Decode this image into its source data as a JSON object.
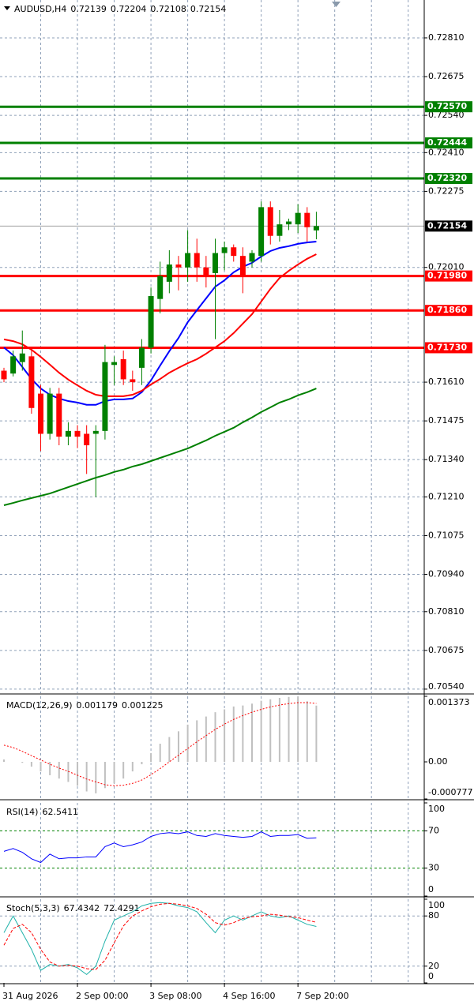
{
  "chart_data": [
    {
      "type": "candlestick",
      "title": "AUDUSD,H4",
      "categories": [
        "31 Aug 2026",
        null,
        null,
        null,
        null,
        null,
        null,
        null,
        "2 Sep 00:00",
        null,
        null,
        null,
        null,
        null,
        null,
        null,
        "3 Sep 08:00",
        null,
        null,
        null,
        null,
        null,
        null,
        null,
        "4 Sep 16:00",
        null,
        null,
        null,
        null,
        null,
        null,
        null,
        "7 Sep 20:00",
        null,
        null
      ],
      "series": [
        {
          "up_color": "#008000",
          "down_color": "#ff0000",
          "open": [
            0.7165,
            0.7164,
            0.7168,
            0.717,
            0.7157,
            0.7143,
            0.7157,
            0.7142,
            0.7144,
            0.7143,
            0.7143,
            0.7144,
            0.7167,
            0.7169,
            0.7162,
            0.7166,
            0.7173,
            0.719,
            0.7196,
            0.7202,
            0.7201,
            0.7206,
            0.7201,
            0.7199,
            0.7206,
            0.7208,
            0.7205,
            0.7203,
            0.7205,
            0.7222,
            0.7212,
            0.7216,
            0.7216,
            0.722,
            0.72139
          ],
          "high": [
            0.7166,
            0.7172,
            0.7179,
            0.7172,
            0.716,
            0.7159,
            0.7159,
            0.7147,
            0.7146,
            0.7146,
            0.7146,
            0.7174,
            0.717,
            0.7172,
            0.7165,
            0.7176,
            0.7194,
            0.7203,
            0.7207,
            0.7205,
            0.7214,
            0.7211,
            0.7205,
            0.7211,
            0.721,
            0.7209,
            0.7208,
            0.7207,
            0.7224,
            0.7224,
            0.7221,
            0.7218,
            0.7223,
            0.7222,
            0.72204
          ],
          "low": [
            0.7161,
            0.7163,
            0.7165,
            0.715,
            0.7137,
            0.7141,
            0.7139,
            0.7139,
            0.7138,
            0.7129,
            0.7121,
            0.7141,
            0.716,
            0.716,
            0.7158,
            0.716,
            0.7171,
            0.7185,
            0.7192,
            0.7193,
            0.7196,
            0.7196,
            0.7194,
            0.7176,
            0.72,
            0.7203,
            0.7192,
            0.7201,
            0.7203,
            0.7209,
            0.721,
            0.7214,
            0.7213,
            0.721,
            0.72108
          ],
          "close": [
            0.7162,
            0.717,
            0.7171,
            0.7152,
            0.7143,
            0.7157,
            0.7142,
            0.7144,
            0.7142,
            0.7139,
            0.7144,
            0.7168,
            0.7168,
            0.7162,
            0.7161,
            0.7173,
            0.7191,
            0.7198,
            0.7202,
            0.7201,
            0.7206,
            0.7201,
            0.7198,
            0.7206,
            0.7208,
            0.7205,
            0.7198,
            0.7206,
            0.7222,
            0.7212,
            0.7216,
            0.7217,
            0.722,
            0.7215,
            0.72154
          ]
        }
      ],
      "lines": [
        {
          "color": "#0000ff",
          "values": [
            0.71731,
            0.71704,
            0.71663,
            0.71621,
            0.71588,
            0.71566,
            0.71553,
            0.71544,
            0.71539,
            0.71531,
            0.71531,
            0.71544,
            0.7155,
            0.7155,
            0.71553,
            0.71575,
            0.71616,
            0.71668,
            0.71718,
            0.71764,
            0.71819,
            0.71861,
            0.71902,
            0.71943,
            0.71965,
            0.71993,
            0.72012,
            0.72026,
            0.72048,
            0.72067,
            0.72078,
            0.72084,
            0.72092,
            0.72097,
            0.721
          ]
        },
        {
          "color": "#ff0000",
          "values": [
            0.71759,
            0.71753,
            0.71742,
            0.71723,
            0.71698,
            0.71671,
            0.71643,
            0.71619,
            0.71599,
            0.7158,
            0.71566,
            0.71561,
            0.71561,
            0.71561,
            0.71566,
            0.7158,
            0.71602,
            0.71621,
            0.71643,
            0.7166,
            0.71676,
            0.7169,
            0.71709,
            0.71731,
            0.71753,
            0.71781,
            0.71814,
            0.71847,
            0.71891,
            0.71935,
            0.71973,
            0.71998,
            0.7202,
            0.7204,
            0.72056
          ]
        },
        {
          "color": "#008000",
          "values": [
            0.71181,
            0.71189,
            0.71198,
            0.71206,
            0.71214,
            0.71222,
            0.71233,
            0.71244,
            0.71255,
            0.71266,
            0.71277,
            0.71286,
            0.71297,
            0.71305,
            0.71316,
            0.71324,
            0.71335,
            0.71346,
            0.71357,
            0.71368,
            0.71379,
            0.71393,
            0.71407,
            0.71423,
            0.71437,
            0.71451,
            0.7147,
            0.71487,
            0.71506,
            0.71522,
            0.71539,
            0.7155,
            0.71564,
            0.71575,
            0.71588
          ]
        }
      ],
      "levels": [
        {
          "value": 0.7257,
          "label": "0.72570",
          "color": "#008000"
        },
        {
          "value": 0.72444,
          "color": "#008000"
        },
        {
          "value": 0.7232,
          "label": "0.72320",
          "color": "#008000"
        },
        {
          "value": 0.7198,
          "label": "0.71980",
          "color": "#ff0000"
        },
        {
          "value": 0.7186,
          "label": "0.71860",
          "color": "#ff0000"
        },
        {
          "value": 0.7173,
          "label": "0.71730",
          "color": "#ff0000"
        }
      ],
      "ylim": [
        0.70526,
        0.72942
      ],
      "yticks": [
        {
          "value": 0.7281,
          "label": "0.72810"
        },
        0.72675,
        {
          "value": 0.7254,
          "label": "0.72540"
        },
        {
          "value": 0.7241,
          "label": "0.72410"
        },
        0.72275,
        {
          "value": 0.7201,
          "label": "0.72010"
        },
        {
          "value": 0.7161,
          "label": "0.71610"
        },
        0.71475,
        {
          "value": 0.7134,
          "label": "0.71340"
        },
        {
          "value": 0.7121,
          "label": "0.71210"
        },
        0.71075,
        {
          "value": 0.7094,
          "label": "0.70940"
        },
        {
          "value": 0.7081,
          "label": "0.70810"
        },
        0.70675,
        {
          "value": 0.7054,
          "label": "0.70540"
        }
      ],
      "grid": true
    },
    {
      "type": "macd",
      "title": "MACD(12,26,9)",
      "series": [
        {
          "type": "bar",
          "color": "#c0c0c0",
          "values": [
            5e-05,
            0.0,
            -2e-05,
            -0.0001,
            -0.0002,
            -0.00028,
            -0.00035,
            -0.00042,
            -0.0005,
            -0.00062,
            -0.00066,
            -0.00055,
            -0.00045,
            -0.00035,
            -0.0002,
            -5e-05,
            0.00018,
            0.00038,
            0.00052,
            0.00064,
            0.00078,
            0.00087,
            0.00095,
            0.00104,
            0.0011,
            0.00116,
            0.00118,
            0.00122,
            0.00128,
            0.00131,
            0.00134,
            0.00136,
            0.00137,
            0.00127,
            0.001179
          ]
        },
        {
          "type": "line",
          "color": "#ff0000",
          "style": "dotted",
          "values": [
            0.00035,
            0.0003,
            0.00022,
            0.00013,
            4e-05,
            -5e-05,
            -0.00013,
            -0.0002,
            -0.00028,
            -0.00036,
            -0.00042,
            -0.00048,
            -0.0005,
            -0.00049,
            -0.00045,
            -0.00038,
            -0.00027,
            -0.00014,
            0.0,
            0.00014,
            0.00028,
            0.00042,
            0.00055,
            0.00068,
            0.00079,
            0.00089,
            0.00097,
            0.00104,
            0.0011,
            0.00115,
            0.00119,
            0.00122,
            0.00124,
            0.00124,
            0.001225
          ]
        }
      ],
      "ylim": [
        -0.000777,
        0.001373
      ],
      "yticks": [
        0.001373,
        {
          "value": 0,
          "label": "0.00"
        },
        -0.000777
      ]
    },
    {
      "type": "oscillator",
      "title": "RSI(14)",
      "series": [
        {
          "color": "#0000ff",
          "style": "solid",
          "values": [
            48,
            51,
            47,
            40,
            36,
            45,
            40,
            41,
            41,
            42,
            42,
            53,
            57,
            53,
            55,
            58,
            64,
            67,
            68,
            67,
            69,
            65,
            64,
            67,
            65,
            64,
            63,
            64,
            69,
            64,
            65,
            65,
            66,
            62,
            62.5411
          ]
        }
      ],
      "levels": [
        70,
        30
      ],
      "level_color": "#008000",
      "ylim": [
        0,
        100
      ],
      "yticks": [
        100,
        70,
        30,
        0
      ]
    },
    {
      "type": "oscillator",
      "title": "Stoch(5,3,3)",
      "series": [
        {
          "color": "#20b2aa",
          "style": "solid",
          "values": [
            60,
            80,
            60,
            40,
            15,
            22,
            20,
            22,
            18,
            10,
            20,
            50,
            75,
            80,
            85,
            92,
            95,
            96,
            95,
            92,
            90,
            85,
            72,
            60,
            75,
            80,
            75,
            80,
            85,
            80,
            78,
            80,
            75,
            70,
            67.4342
          ]
        },
        {
          "color": "#ff0000",
          "style": "dashed",
          "values": [
            45,
            65,
            70,
            60,
            40,
            25,
            20,
            21,
            20,
            17,
            16,
            27,
            48,
            68,
            80,
            86,
            91,
            94,
            95,
            94,
            92,
            89,
            82,
            72,
            69,
            72,
            77,
            79,
            80,
            82,
            81,
            79,
            78,
            75,
            72.4291
          ]
        }
      ],
      "levels": [
        80,
        20
      ],
      "level_color": "#8fa0b8",
      "ylim": [
        0,
        100
      ],
      "yticks": [
        100,
        80,
        20,
        0
      ]
    }
  ]
}
